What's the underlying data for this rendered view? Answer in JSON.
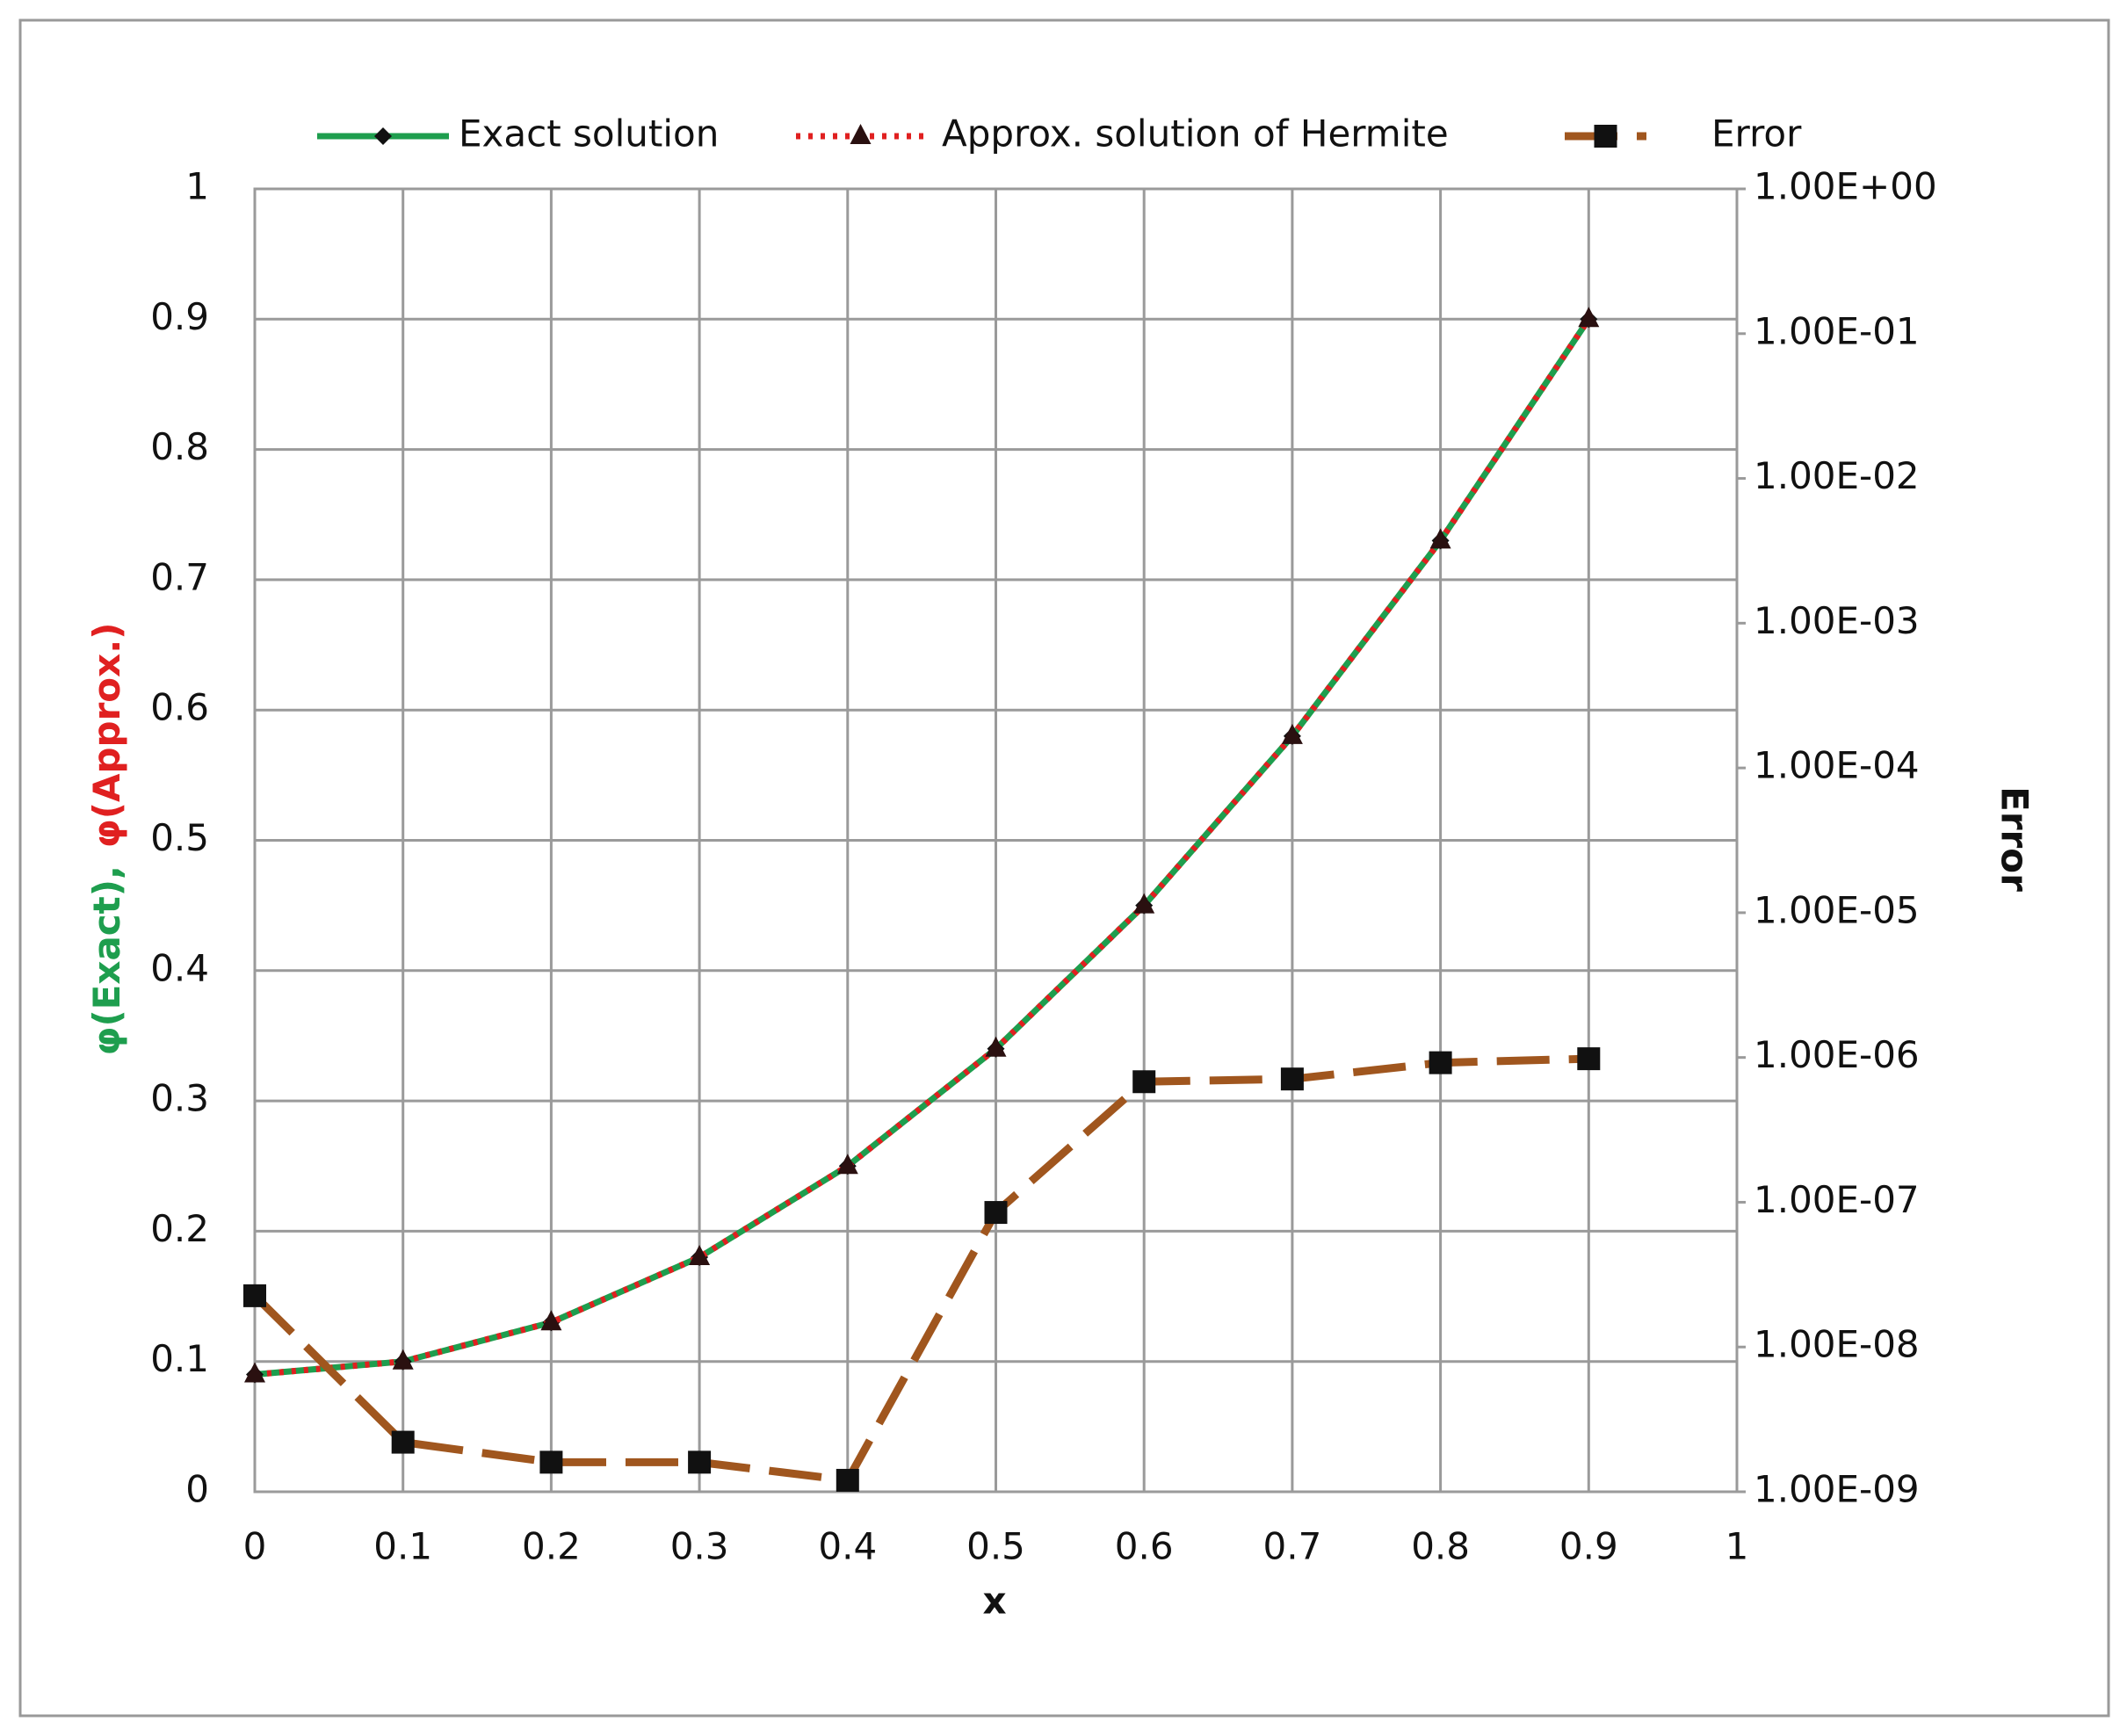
{
  "chart_data": {
    "type": "line",
    "xlabel": "x",
    "ylabel": [
      "φ(Exact),",
      "φ(Approx.)"
    ],
    "ylabel_colors": [
      "#1e9e4e",
      "#e02020"
    ],
    "y2label": "Error",
    "y2label_color": "#b8a56c",
    "y2tick_color": "#9a6a1c",
    "x": [
      0,
      0.1,
      0.2,
      0.3,
      0.4,
      0.5,
      0.6,
      0.7,
      0.8,
      0.9
    ],
    "series": [
      {
        "name": "Exact solution",
        "color": "#1e9e4e",
        "dash": "solid",
        "marker": "diamond",
        "values": [
          0.09,
          0.1,
          0.13,
          0.18,
          0.25,
          0.34,
          0.45,
          0.58,
          0.73,
          0.9
        ]
      },
      {
        "name": "Approx. solution of Hermite",
        "color": "#e02020",
        "dash": "dotted",
        "marker": "triangle",
        "values": [
          0.09,
          0.1,
          0.13,
          0.18,
          0.25,
          0.34,
          0.45,
          0.58,
          0.73,
          0.9
        ]
      },
      {
        "name": "Error",
        "color": "#a0561e",
        "dash": "dashed",
        "marker": "square",
        "axis": "y2",
        "values": [
          2.26e-08,
          2.2e-09,
          1.6e-09,
          1.6e-09,
          1.2e-09,
          8.5e-08,
          6.8e-07,
          7.1e-07,
          9.2e-07,
          9.8e-07
        ]
      }
    ],
    "xlim": [
      0,
      1
    ],
    "xticks": [
      0,
      0.1,
      0.2,
      0.3,
      0.4,
      0.5,
      0.6,
      0.7,
      0.8,
      0.9,
      1
    ],
    "ylim": [
      0,
      1
    ],
    "yticks": [
      0,
      0.1,
      0.2,
      0.3,
      0.4,
      0.5,
      0.6,
      0.7,
      0.8,
      0.9,
      1
    ],
    "y2lim": [
      1e-09,
      1
    ],
    "y2log": true,
    "y2ticks": [
      {
        "value": 1e-09,
        "label": "1.00E-09"
      },
      {
        "value": 1e-08,
        "label": "1.00E-08"
      },
      {
        "value": 1e-07,
        "label": "1.00E-07"
      },
      {
        "value": 1e-06,
        "label": "1.00E-06"
      },
      {
        "value": 1e-05,
        "label": "1.00E-05"
      },
      {
        "value": 0.0001,
        "label": "1.00E-04"
      },
      {
        "value": 0.001,
        "label": "1.00E-03"
      },
      {
        "value": 0.01,
        "label": "1.00E-02"
      },
      {
        "value": 0.1,
        "label": "1.00E-01"
      },
      {
        "value": 1,
        "label": "1.00E+00"
      }
    ],
    "grid": true,
    "legend": "top"
  }
}
